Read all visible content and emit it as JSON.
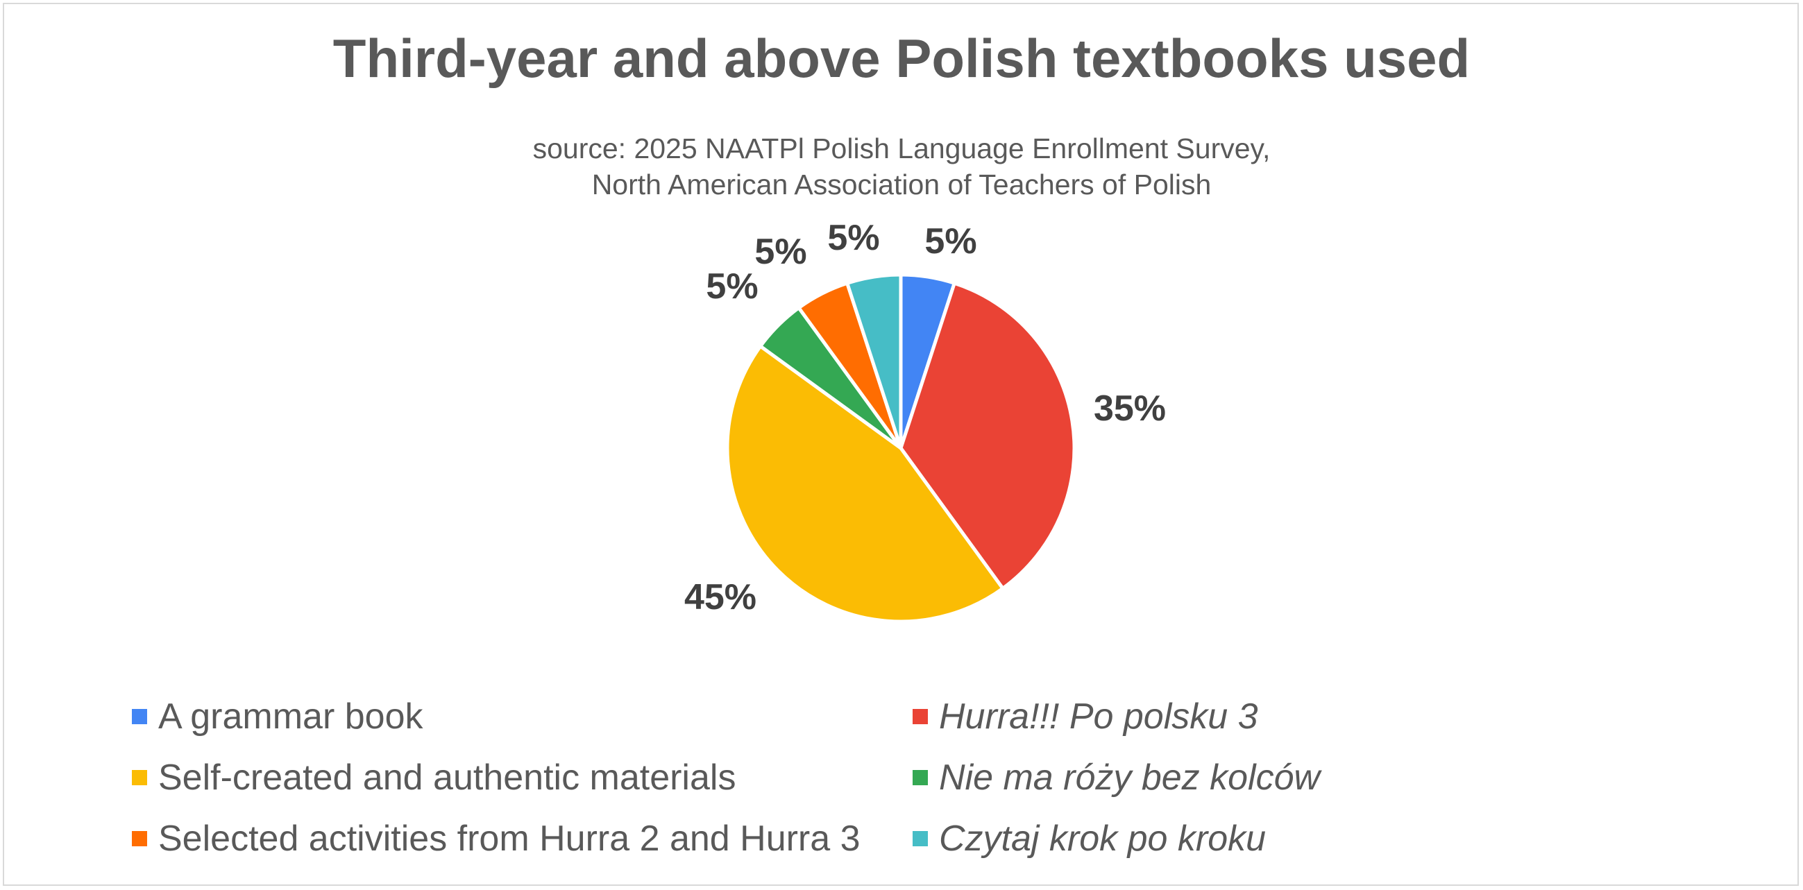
{
  "chart_data": {
    "type": "pie",
    "title": "Third-year and above Polish textbooks used",
    "subtitle": [
      "source: 2025 NAATPl Polish Language Enrollment Survey,",
      "North American Association of Teachers of Polish"
    ],
    "legend_position": "bottom",
    "slices": [
      {
        "label": "A grammar book",
        "value": 5,
        "display": "5%",
        "color": "#4285f4",
        "italic": false
      },
      {
        "label": "Hurra!!! Po polsku 3",
        "value": 35,
        "display": "35%",
        "color": "#ea4335",
        "italic": true
      },
      {
        "label": "Self-created and authentic materials",
        "value": 45,
        "display": "45%",
        "color": "#fbbc04",
        "italic": false
      },
      {
        "label": "Nie ma róży bez kolców",
        "value": 5,
        "display": "5%",
        "color": "#34a853",
        "italic": true
      },
      {
        "label": "Selected activities from Hurra 2 and Hurra 3",
        "value": 5,
        "display": "5%",
        "color": "#ff6d01",
        "italic": false
      },
      {
        "label": "Czytaj krok po kroku",
        "value": 5,
        "display": "5%",
        "color": "#46bdc6",
        "italic": true
      }
    ]
  }
}
